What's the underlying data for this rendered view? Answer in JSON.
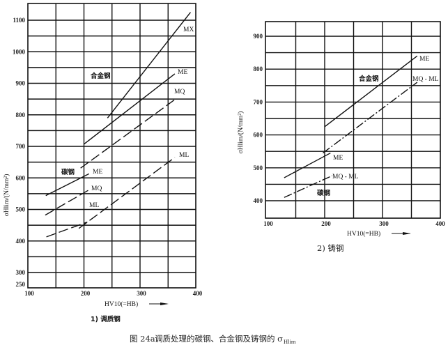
{
  "chart_data": [
    {
      "type": "line",
      "title": "1) 调质钢",
      "xlabel": "HV10(=HB)",
      "ylabel": "σHlim/(N/mm²)",
      "xlim": [
        100,
        400
      ],
      "ylim": [
        250,
        1150
      ],
      "grid": true,
      "x_ticks": [
        "100",
        "200",
        "300",
        "400"
      ],
      "y_ticks": [
        "250",
        "300",
        "400",
        "500",
        "600",
        "700",
        "800",
        "900",
        "1000",
        "1100"
      ],
      "groups": [
        "合金钢",
        "碳钢"
      ],
      "series": [
        {
          "name": "MX",
          "group": "合金钢",
          "style": "solid",
          "x": [
            242,
            390
          ],
          "y": [
            790,
            1125
          ]
        },
        {
          "name": "ME",
          "group": "合金钢",
          "style": "solid",
          "x": [
            200,
            362
          ],
          "y": [
            707,
            930
          ]
        },
        {
          "name": "MQ",
          "group": "合金钢",
          "style": "dashed",
          "x": [
            194,
            361
          ],
          "y": [
            631,
            847
          ]
        },
        {
          "name": "ML",
          "group": "合金钢",
          "style": "dashed",
          "x": [
            191,
            362
          ],
          "y": [
            440,
            665
          ]
        },
        {
          "name": "ME",
          "group": "碳钢",
          "style": "solid",
          "x": [
            132,
            209
          ],
          "y": [
            544,
            613
          ]
        },
        {
          "name": "MQ",
          "group": "碳钢",
          "style": "dashed",
          "x": [
            131,
            209
          ],
          "y": [
            482,
            562
          ]
        },
        {
          "name": "ML",
          "group": "碳钢",
          "style": "dashed",
          "x": [
            133,
            206
          ],
          "y": [
            413,
            460
          ]
        }
      ]
    },
    {
      "type": "line",
      "title": "2) 铸钢",
      "xlabel": "HV10(=HB)",
      "ylabel": "σHlim/(N/mm²)",
      "xlim": [
        100,
        400
      ],
      "ylim": [
        350,
        945
      ],
      "grid": true,
      "x_ticks": [
        "100",
        "200",
        "300",
        "400"
      ],
      "y_ticks": [
        "400",
        "500",
        "600",
        "700",
        "800",
        "900"
      ],
      "groups": [
        "合金钢",
        "碳钢"
      ],
      "series": [
        {
          "name": "ME",
          "group": "合金钢",
          "style": "solid",
          "x": [
            200,
            360
          ],
          "y": [
            625,
            840
          ]
        },
        {
          "name": "MQ - ML",
          "group": "合金钢",
          "style": "dashdot",
          "x": [
            197,
            360
          ],
          "y": [
            545,
            760
          ]
        },
        {
          "name": "ME",
          "group": "碳钢",
          "style": "solid",
          "x": [
            130,
            210
          ],
          "y": [
            470,
            545
          ]
        },
        {
          "name": "MQ - ML",
          "group": "碳钢",
          "style": "dashdot",
          "x": [
            130,
            213
          ],
          "y": [
            410,
            476
          ]
        }
      ]
    }
  ],
  "caption": {
    "figure_no": "图 24a",
    "text": "调质处理的碳钢、合金钢及铸钢的 σ",
    "subscript": "Hlim"
  }
}
